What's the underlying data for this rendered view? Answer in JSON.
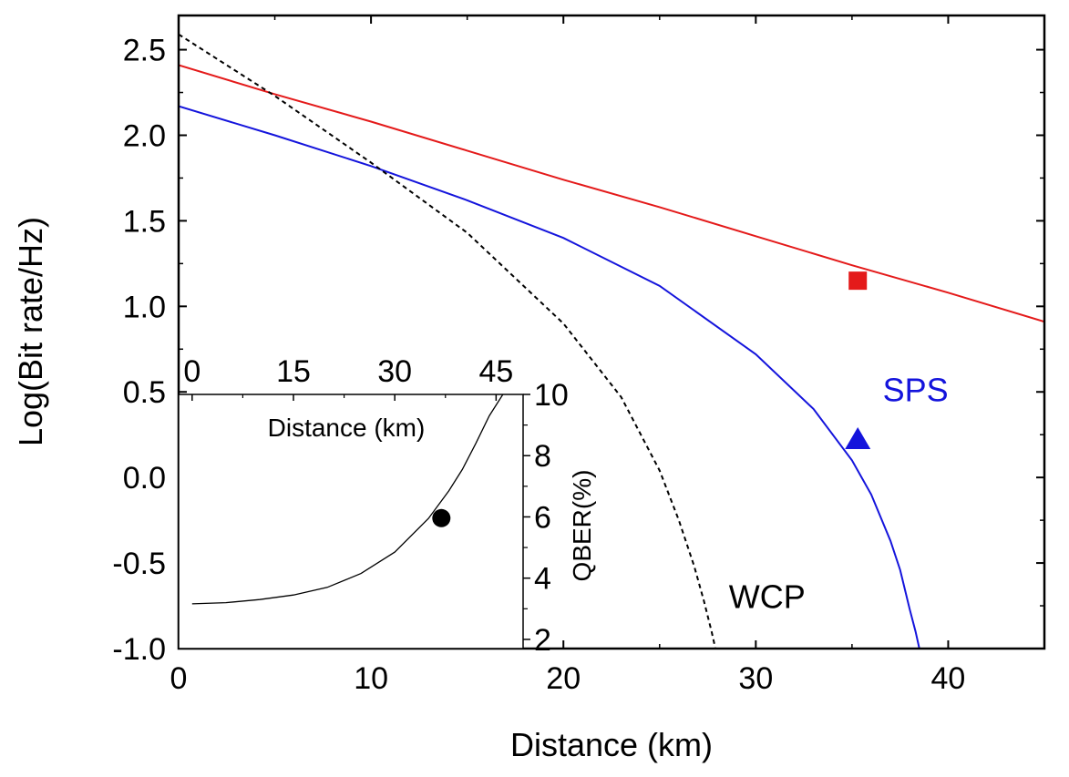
{
  "chart_data": [
    {
      "type": "line",
      "xlabel": "Distance (km)",
      "ylabel": "Log(Bit rate/Hz)",
      "xlim": [
        0,
        45
      ],
      "ylim": [
        -1.0,
        2.7
      ],
      "xticks": [
        "0",
        "10",
        "20",
        "30",
        "40"
      ],
      "yticks": [
        "-1.0",
        "-0.5",
        "0.0",
        "0.5",
        "1.0",
        "1.5",
        "2.0",
        "2.5"
      ],
      "series": [
        {
          "name": "red",
          "color": "#e41a1a",
          "style": "solid",
          "x": [
            0,
            5,
            10,
            15,
            20,
            25,
            30,
            35,
            40,
            45
          ],
          "y": [
            2.41,
            2.24,
            2.08,
            1.91,
            1.74,
            1.58,
            1.41,
            1.24,
            1.08,
            0.91
          ]
        },
        {
          "name": "SPS",
          "color": "#1414dc",
          "style": "solid",
          "x": [
            0,
            5,
            10,
            15,
            20,
            25,
            30,
            33,
            35,
            36,
            37,
            37.5,
            38,
            38.3,
            38.5
          ],
          "y": [
            2.17,
            2.0,
            1.82,
            1.62,
            1.4,
            1.12,
            0.72,
            0.4,
            0.1,
            -0.1,
            -0.37,
            -0.54,
            -0.77,
            -0.9,
            -1.0
          ]
        },
        {
          "name": "WCP",
          "color": "#000000",
          "style": "dashed",
          "x": [
            0,
            5,
            10,
            15,
            20,
            23,
            25,
            26,
            26.8,
            27.3,
            27.7,
            27.9
          ],
          "y": [
            2.59,
            2.23,
            1.84,
            1.43,
            0.9,
            0.47,
            0.04,
            -0.25,
            -0.52,
            -0.72,
            -0.9,
            -1.0
          ]
        }
      ],
      "markers": [
        {
          "name": "square-marker",
          "shape": "square",
          "color": "#e41a1a",
          "x": 35.3,
          "y": 1.15
        },
        {
          "name": "triangle-marker",
          "shape": "triangle",
          "color": "#1414dc",
          "x": 35.3,
          "y": 0.23
        }
      ],
      "annotations": [
        {
          "text": "SPS",
          "color": "#1414dc",
          "x": 36.6,
          "y": 0.51
        },
        {
          "text": "WCP",
          "color": "#000000",
          "x": 28.6,
          "y": -0.7
        }
      ]
    },
    {
      "type": "line",
      "xlabel": "Distance (km)",
      "ylabel": "QBER(%)",
      "xlim": [
        -2,
        49
      ],
      "ylim": [
        1.7,
        10
      ],
      "xticks": [
        "0",
        "15",
        "30",
        "45"
      ],
      "yticks": [
        "2",
        "4",
        "6",
        "8",
        "10"
      ],
      "series": [
        {
          "name": "QBER",
          "color": "#000000",
          "style": "solid",
          "x": [
            0,
            5,
            10,
            15,
            20,
            25,
            30,
            35,
            38,
            40,
            42,
            44,
            46
          ],
          "y": [
            3.16,
            3.2,
            3.3,
            3.45,
            3.7,
            4.15,
            4.85,
            5.95,
            6.85,
            7.55,
            8.4,
            9.3,
            10.0
          ]
        }
      ],
      "markers": [
        {
          "name": "circle-marker",
          "shape": "circle",
          "color": "#000000",
          "x": 36.9,
          "y": 5.96
        }
      ]
    }
  ]
}
